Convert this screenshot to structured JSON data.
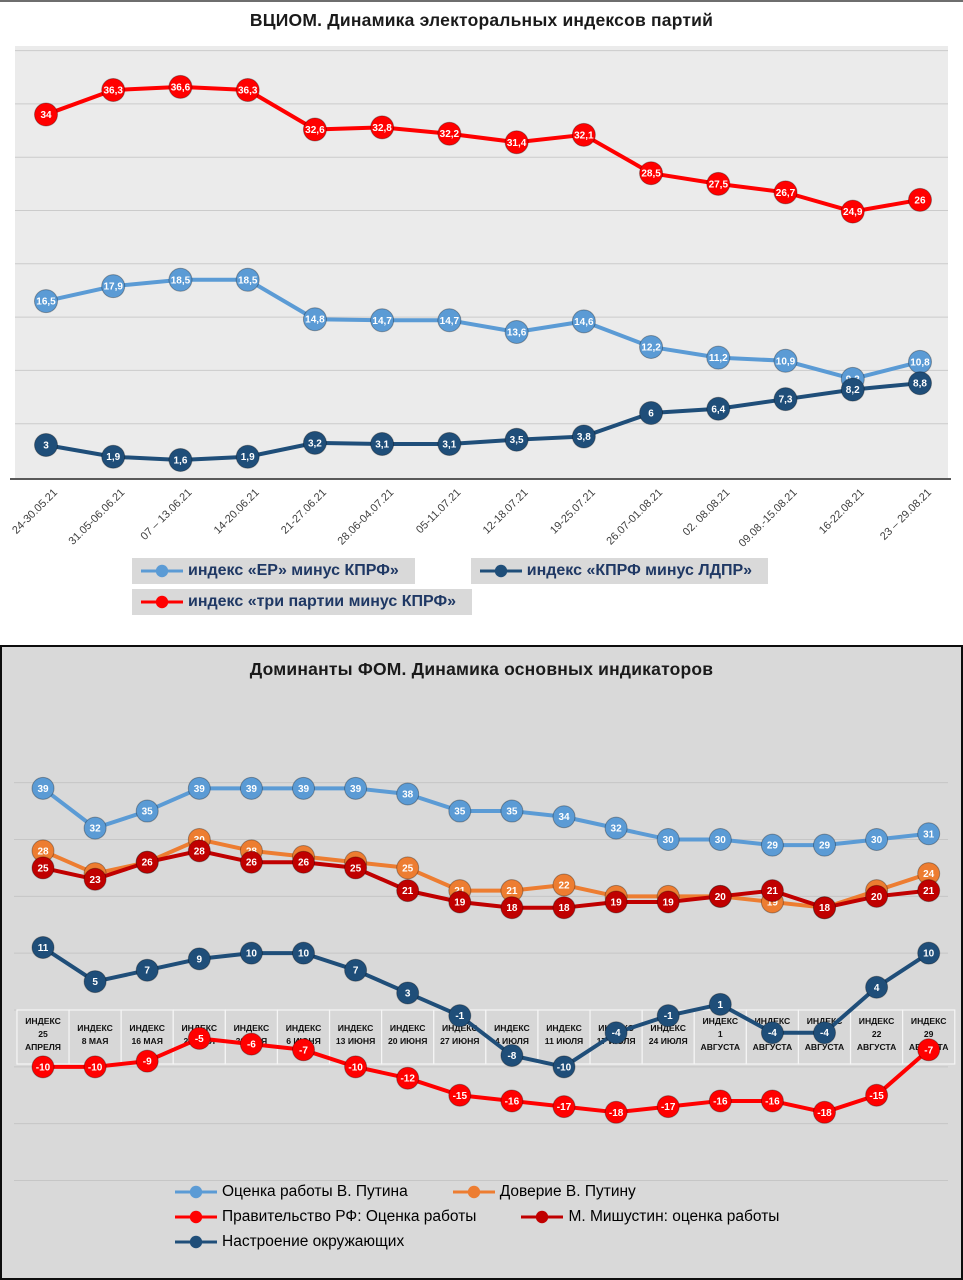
{
  "chart_data": [
    {
      "type": "line",
      "title": "ВЦИОМ. Динамика электоральных индексов партий",
      "categories": [
        "24-30.05.21",
        "31.05-06.06.21",
        "07 – 13.06.21",
        "14-20.06.21",
        "21-27.06.21",
        "28.06-04.07.21",
        "05-11.07.21",
        "12-18.07.21",
        "19-25.07.21",
        "26.07-01.08.21",
        "02. 08.08.21",
        "09.08.-15.08.21",
        "16-22.08.21",
        "23 – 29.08.21"
      ],
      "ylim": [
        0,
        40
      ],
      "grid": true,
      "legend_position": "bottom",
      "series": [
        {
          "name": "индекс «ЕР» минус КПРФ»",
          "color": "#5B9BD5",
          "values": [
            16.5,
            17.9,
            18.5,
            18.5,
            14.8,
            14.7,
            14.7,
            13.6,
            14.6,
            12.2,
            11.2,
            10.9,
            9.2,
            10.8
          ]
        },
        {
          "name": "индекс «КПРФ минус ЛДПР»",
          "color": "#1F4E79",
          "values": [
            3,
            1.9,
            1.6,
            1.9,
            3.2,
            3.1,
            3.1,
            3.5,
            3.8,
            6,
            6.4,
            7.3,
            8.2,
            8.8
          ]
        },
        {
          "name": "индекс «три партии минус КПРФ»",
          "color": "#FF0000",
          "values": [
            34,
            36.3,
            36.6,
            36.3,
            32.6,
            32.8,
            32.2,
            31.4,
            32.1,
            28.5,
            27.5,
            26.7,
            24.9,
            26
          ]
        }
      ]
    },
    {
      "type": "line",
      "title": "Доминанты ФОМ. Динамика основных индикаторов",
      "category_prefix": "ИНДЕКС",
      "categories": [
        "25 АПРЕЛЯ",
        "8 МАЯ",
        "16 МАЯ",
        "23 МАЯ",
        "30 МАЯ",
        "6 ИЮНЯ",
        "13 ИЮНЯ",
        "20 ИЮНЯ",
        "27 ИЮНЯ",
        "4 ИЮЛЯ",
        "11 ИЮЛЯ",
        "17 ИЮЛЯ",
        "24 ИЮЛЯ",
        "1 АВГУСТА",
        "8 АВГУСТА",
        "15 АВГУСТА",
        "22 АВГУСТА",
        "29 АВГУСТА"
      ],
      "ylim": [
        -30,
        45
      ],
      "grid": true,
      "legend_position": "bottom",
      "series": [
        {
          "name": "Оценка работы В. Путина",
          "color": "#5B9BD5",
          "values": [
            39,
            32,
            35,
            39,
            39,
            39,
            39,
            38,
            35,
            35,
            34,
            32,
            30,
            30,
            29,
            29,
            30,
            31
          ]
        },
        {
          "name": "Доверие В. Путину",
          "color": "#ED7D31",
          "values": [
            28,
            24,
            26,
            30,
            28,
            27,
            26,
            25,
            21,
            21,
            22,
            20,
            20,
            20,
            19,
            18,
            21,
            24
          ]
        },
        {
          "name": "Правительство РФ: Оценка работы",
          "color": "#FF0000",
          "values": [
            -10,
            -10,
            -9,
            -5,
            -6,
            -7,
            -10,
            -12,
            -15,
            -16,
            -17,
            -18,
            -17,
            -16,
            -16,
            -18,
            -15,
            -7
          ]
        },
        {
          "name": "М. Мишустин: оценка работы",
          "color": "#C00000",
          "values": [
            25,
            23,
            26,
            28,
            26,
            26,
            25,
            21,
            19,
            18,
            18,
            19,
            19,
            20,
            21,
            18,
            20,
            21
          ]
        },
        {
          "name": "Настроение окружающих",
          "color": "#1F4E79",
          "values": [
            11,
            5,
            7,
            9,
            10,
            10,
            7,
            3,
            -1,
            -8,
            -10,
            -4,
            -1,
            1,
            -4,
            -4,
            4,
            10
          ]
        }
      ]
    }
  ]
}
